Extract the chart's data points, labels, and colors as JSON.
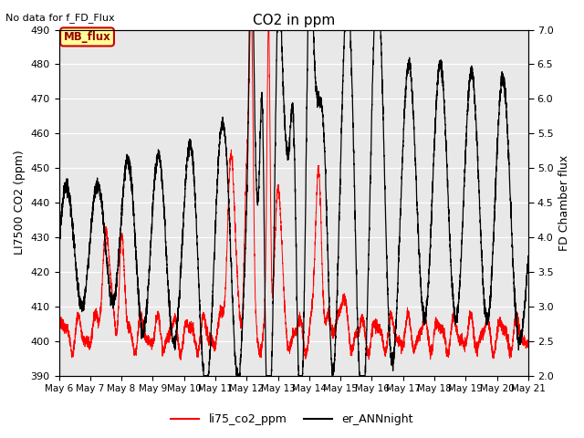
{
  "title": "CO2 in ppm",
  "top_left_text": "No data for f_FD_Flux",
  "ylabel_left": "LI7500 CO2 (ppm)",
  "ylabel_right": "FD Chamber flux",
  "ylim_left": [
    390,
    490
  ],
  "ylim_right": [
    2.0,
    7.0
  ],
  "yticks_left": [
    390,
    400,
    410,
    420,
    430,
    440,
    450,
    460,
    470,
    480,
    490
  ],
  "yticks_right": [
    2.0,
    2.5,
    3.0,
    3.5,
    4.0,
    4.5,
    5.0,
    5.5,
    6.0,
    6.5,
    7.0
  ],
  "xtick_labels": [
    "May 6",
    "May 7",
    "May 8",
    "May 9",
    "May 10",
    "May 11",
    "May 12",
    "May 13",
    "May 14",
    "May 15",
    "May 16",
    "May 17",
    "May 18",
    "May 19",
    "May 20",
    "May 21"
  ],
  "legend_entries": [
    "li75_co2_ppm",
    "er_ANNnight"
  ],
  "legend_colors": [
    "red",
    "black"
  ],
  "inset_label": "MB_flux",
  "inset_facecolor": "#ffff99",
  "inset_edgecolor": "#cc0000",
  "background_color": "#e8e8e8",
  "line_color_red": "#ff0000",
  "line_color_black": "#000000",
  "n_points": 5000,
  "seed": 7
}
